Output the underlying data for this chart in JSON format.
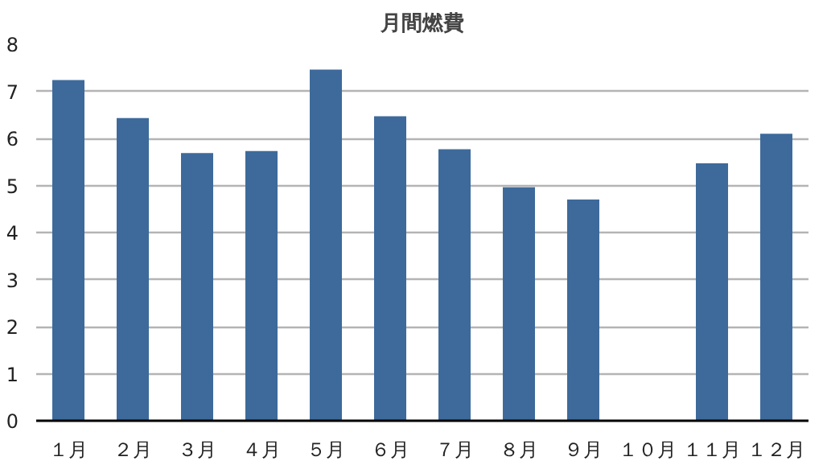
{
  "chart_data": {
    "type": "bar",
    "title": "月間燃費",
    "categories": [
      "１月",
      "２月",
      "３月",
      "４月",
      "５月",
      "６月",
      "７月",
      "８月",
      "９月",
      "１０月",
      "１１月",
      "１２月"
    ],
    "values": [
      7.24,
      6.43,
      5.69,
      5.73,
      7.46,
      6.47,
      5.77,
      4.96,
      4.7,
      null,
      5.47,
      6.1
    ],
    "color": "#3d6a9b",
    "ylim": [
      0,
      8
    ],
    "yticks": [
      0,
      1,
      2,
      3,
      4,
      5,
      6,
      7,
      8
    ],
    "grid": "y"
  }
}
